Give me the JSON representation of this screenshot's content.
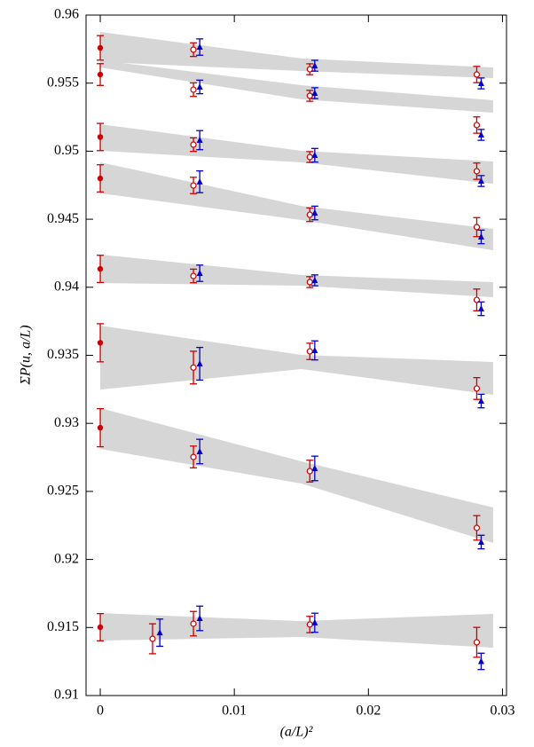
{
  "chart_data": {
    "type": "scatter",
    "xlabel": "(a/L)²",
    "ylabel": "ΣP(u, a/L)",
    "xlim": [
      -0.00106,
      0.0303
    ],
    "ylim": [
      0.91,
      0.96
    ],
    "xticks": [
      0,
      0.01,
      0.02,
      0.03
    ],
    "yticks": [
      0.91,
      0.915,
      0.92,
      0.925,
      0.93,
      0.935,
      0.94,
      0.945,
      0.95,
      0.955,
      0.96
    ],
    "band_color": "#d6d6d6",
    "bands": [
      {
        "x": [
          0,
          0.015,
          0.0293
        ],
        "upper": [
          0.95876,
          0.95681,
          0.95615
        ],
        "lower": [
          0.95655,
          0.95589,
          0.95537
        ]
      },
      {
        "x": [
          0,
          0.015,
          0.0293
        ],
        "upper": [
          0.95668,
          0.95485,
          0.95374
        ],
        "lower": [
          0.95615,
          0.95381,
          0.95283
        ]
      },
      {
        "x": [
          0,
          0.015,
          0.0293
        ],
        "upper": [
          0.95198,
          0.95003,
          0.94924
        ],
        "lower": [
          0.95003,
          0.94918,
          0.94761
        ]
      },
      {
        "x": [
          0,
          0.015,
          0.0293
        ],
        "upper": [
          0.94918,
          0.94598,
          0.94429
        ],
        "lower": [
          0.9469,
          0.94494,
          0.94272
        ]
      },
      {
        "x": [
          0,
          0.015,
          0.0293
        ],
        "upper": [
          0.9424,
          0.9409,
          0.94038
        ],
        "lower": [
          0.94031,
          0.94012,
          0.93927
        ]
      },
      {
        "x": [
          0,
          0.015,
          0.0293
        ],
        "upper": [
          0.93718,
          0.93503,
          0.93451
        ],
        "lower": [
          0.93248,
          0.93399,
          0.9321
        ]
      },
      {
        "x": [
          0,
          0.015,
          0.0293
        ],
        "upper": [
          0.93112,
          0.92721,
          0.92382
        ],
        "lower": [
          0.92812,
          0.92558,
          0.92121
        ]
      },
      {
        "x": [
          0,
          0.015,
          0.0293
        ],
        "upper": [
          0.91606,
          0.91547,
          0.916
        ],
        "lower": [
          0.91404,
          0.9143,
          0.91352
        ]
      }
    ],
    "series": [
      {
        "color": "#cc0000",
        "marker": "filled-circle",
        "x": [
          0,
          0,
          0,
          0,
          0,
          0,
          0,
          0
        ],
        "values": [
          0.95759,
          0.95563,
          0.95104,
          0.948,
          0.94135,
          0.93592,
          0.92968,
          0.91502
        ],
        "errors": [
          0.0009,
          0.0008,
          0.001,
          0.001,
          0.001,
          0.0014,
          0.0014,
          0.001
        ]
      },
      {
        "color": "#cc0000",
        "marker": "open-circle",
        "x": [
          0.00695,
          0.00695,
          0.00695,
          0.00695,
          0.00695,
          0.00695,
          0.00695,
          0.00695,
          0.01563,
          0.01563,
          0.01563,
          0.01563,
          0.01563,
          0.01563,
          0.01563,
          0.01563,
          0.02808,
          0.02808,
          0.02808,
          0.02808,
          0.02808,
          0.02808,
          0.02808,
          0.02808,
          0.0039
        ],
        "values": [
          0.95746,
          0.95452,
          0.95048,
          0.94748,
          0.94083,
          0.9341,
          0.92753,
          0.91528,
          0.95602,
          0.95407,
          0.94957,
          0.94533,
          0.94038,
          0.93529,
          0.92649,
          0.91522,
          0.95563,
          0.95192,
          0.94853,
          0.94442,
          0.93907,
          0.93256,
          0.92232,
          0.91391,
          0.91417
        ],
        "errors": [
          0.0005,
          0.0005,
          0.0005,
          0.0006,
          0.0005,
          0.0012,
          0.0008,
          0.0009,
          0.0004,
          0.0004,
          0.0004,
          0.0005,
          0.0004,
          0.0006,
          0.0008,
          0.0006,
          0.0006,
          0.0006,
          0.0006,
          0.0007,
          0.0008,
          0.0008,
          0.0009,
          0.0011,
          0.0011
        ]
      },
      {
        "color": "#0000cc",
        "marker": "triangle",
        "x": [
          0.00742,
          0.00742,
          0.00742,
          0.00742,
          0.00742,
          0.00742,
          0.00742,
          0.00742,
          0.016,
          0.016,
          0.016,
          0.016,
          0.016,
          0.016,
          0.016,
          0.016,
          0.02841,
          0.02841,
          0.02841,
          0.02841,
          0.02841,
          0.02841,
          0.02841,
          0.02841,
          0.00444
        ],
        "values": [
          0.95765,
          0.95472,
          0.95081,
          0.94775,
          0.94103,
          0.93438,
          0.92793,
          0.91567,
          0.95628,
          0.95426,
          0.9497,
          0.94546,
          0.94051,
          0.93536,
          0.92669,
          0.91535,
          0.95498,
          0.9512,
          0.94781,
          0.9437,
          0.93842,
          0.93164,
          0.92128,
          0.91251,
          0.91462
        ],
        "errors": [
          0.0006,
          0.0005,
          0.0007,
          0.0008,
          0.0006,
          0.0012,
          0.0009,
          0.0009,
          0.0004,
          0.0004,
          0.0005,
          0.0005,
          0.0004,
          0.0007,
          0.0009,
          0.0007,
          0.0004,
          0.0004,
          0.0004,
          0.0005,
          0.0005,
          0.0005,
          0.0005,
          0.0006,
          0.001
        ]
      }
    ]
  }
}
